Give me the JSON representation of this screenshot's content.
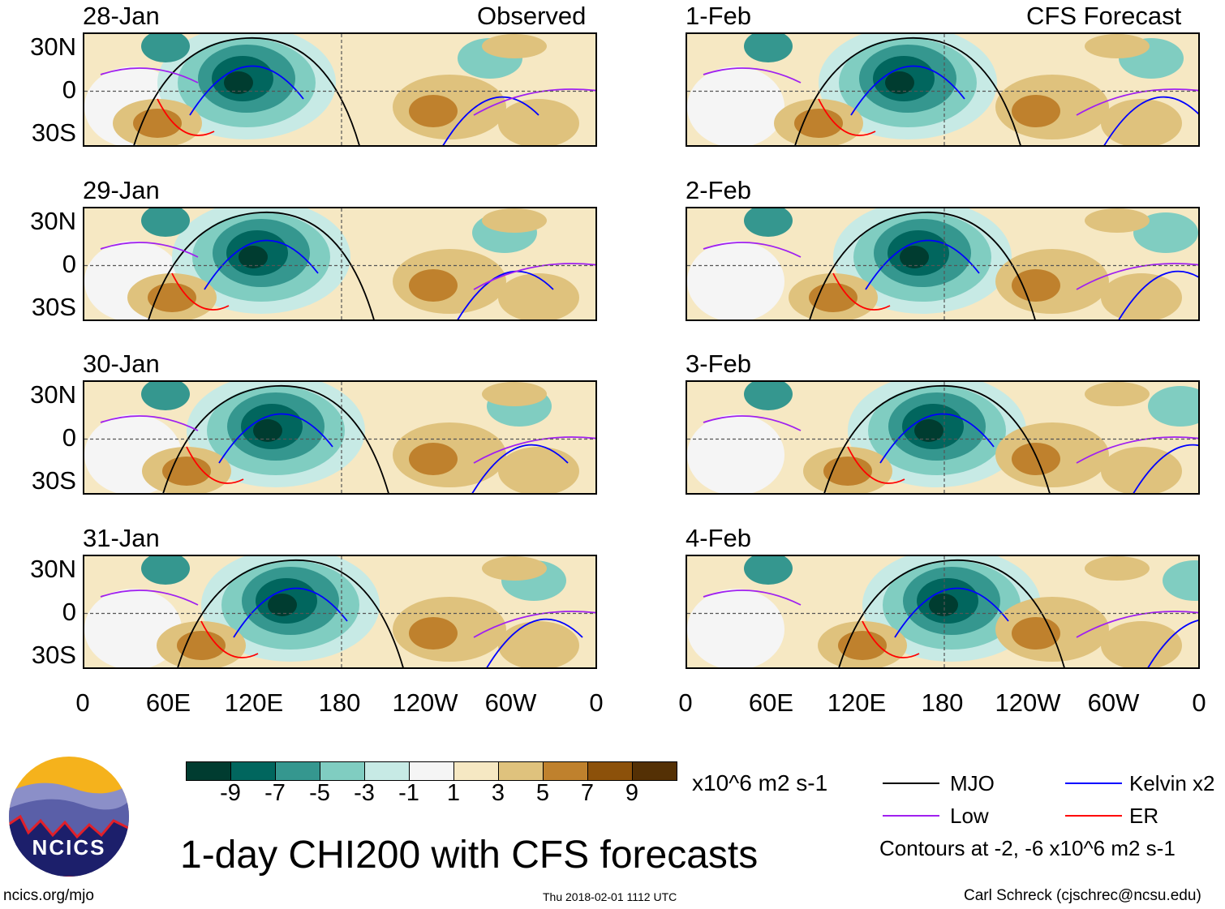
{
  "left_header": "Observed",
  "right_header": "CFS Forecast",
  "panels_left": [
    "28-Jan",
    "29-Jan",
    "30-Jan",
    "31-Jan"
  ],
  "panels_right": [
    "1-Feb",
    "2-Feb",
    "3-Feb",
    "4-Feb"
  ],
  "lat_labels": [
    "30N",
    "0",
    "30S"
  ],
  "lon_labels": [
    "0",
    "60E",
    "120E",
    "180",
    "120W",
    "60W",
    "0"
  ],
  "colorbar": {
    "colors": [
      "#003c30",
      "#01665e",
      "#35978f",
      "#80cdc1",
      "#c7eae5",
      "#f5f5f5",
      "#f6e8c3",
      "#dfc27d",
      "#bf812d",
      "#8c510a",
      "#543005"
    ],
    "labels": [
      "-9",
      "-7",
      "-5",
      "-3",
      "-1",
      "1",
      "3",
      "5",
      "7",
      "9"
    ],
    "units": "x10^6 m2 s-1"
  },
  "legend": {
    "items": [
      {
        "label": "MJO",
        "color": "#000000"
      },
      {
        "label": "Kelvin x2",
        "color": "#0000ff"
      },
      {
        "label": "Low",
        "color": "#a020f0"
      },
      {
        "label": "ER",
        "color": "#ff0000"
      }
    ],
    "contours_note": "Contours at -2, -6 x10^6 m2 s-1"
  },
  "logo_text": "NCICS",
  "main_title": "1-day CHI200 with CFS forecasts",
  "footer": {
    "left": "ncics.org/mjo",
    "center": "Thu 2018-02-01 1112 UTC",
    "right": "Carl Schreck (cjschrec@ncsu.edu)"
  }
}
